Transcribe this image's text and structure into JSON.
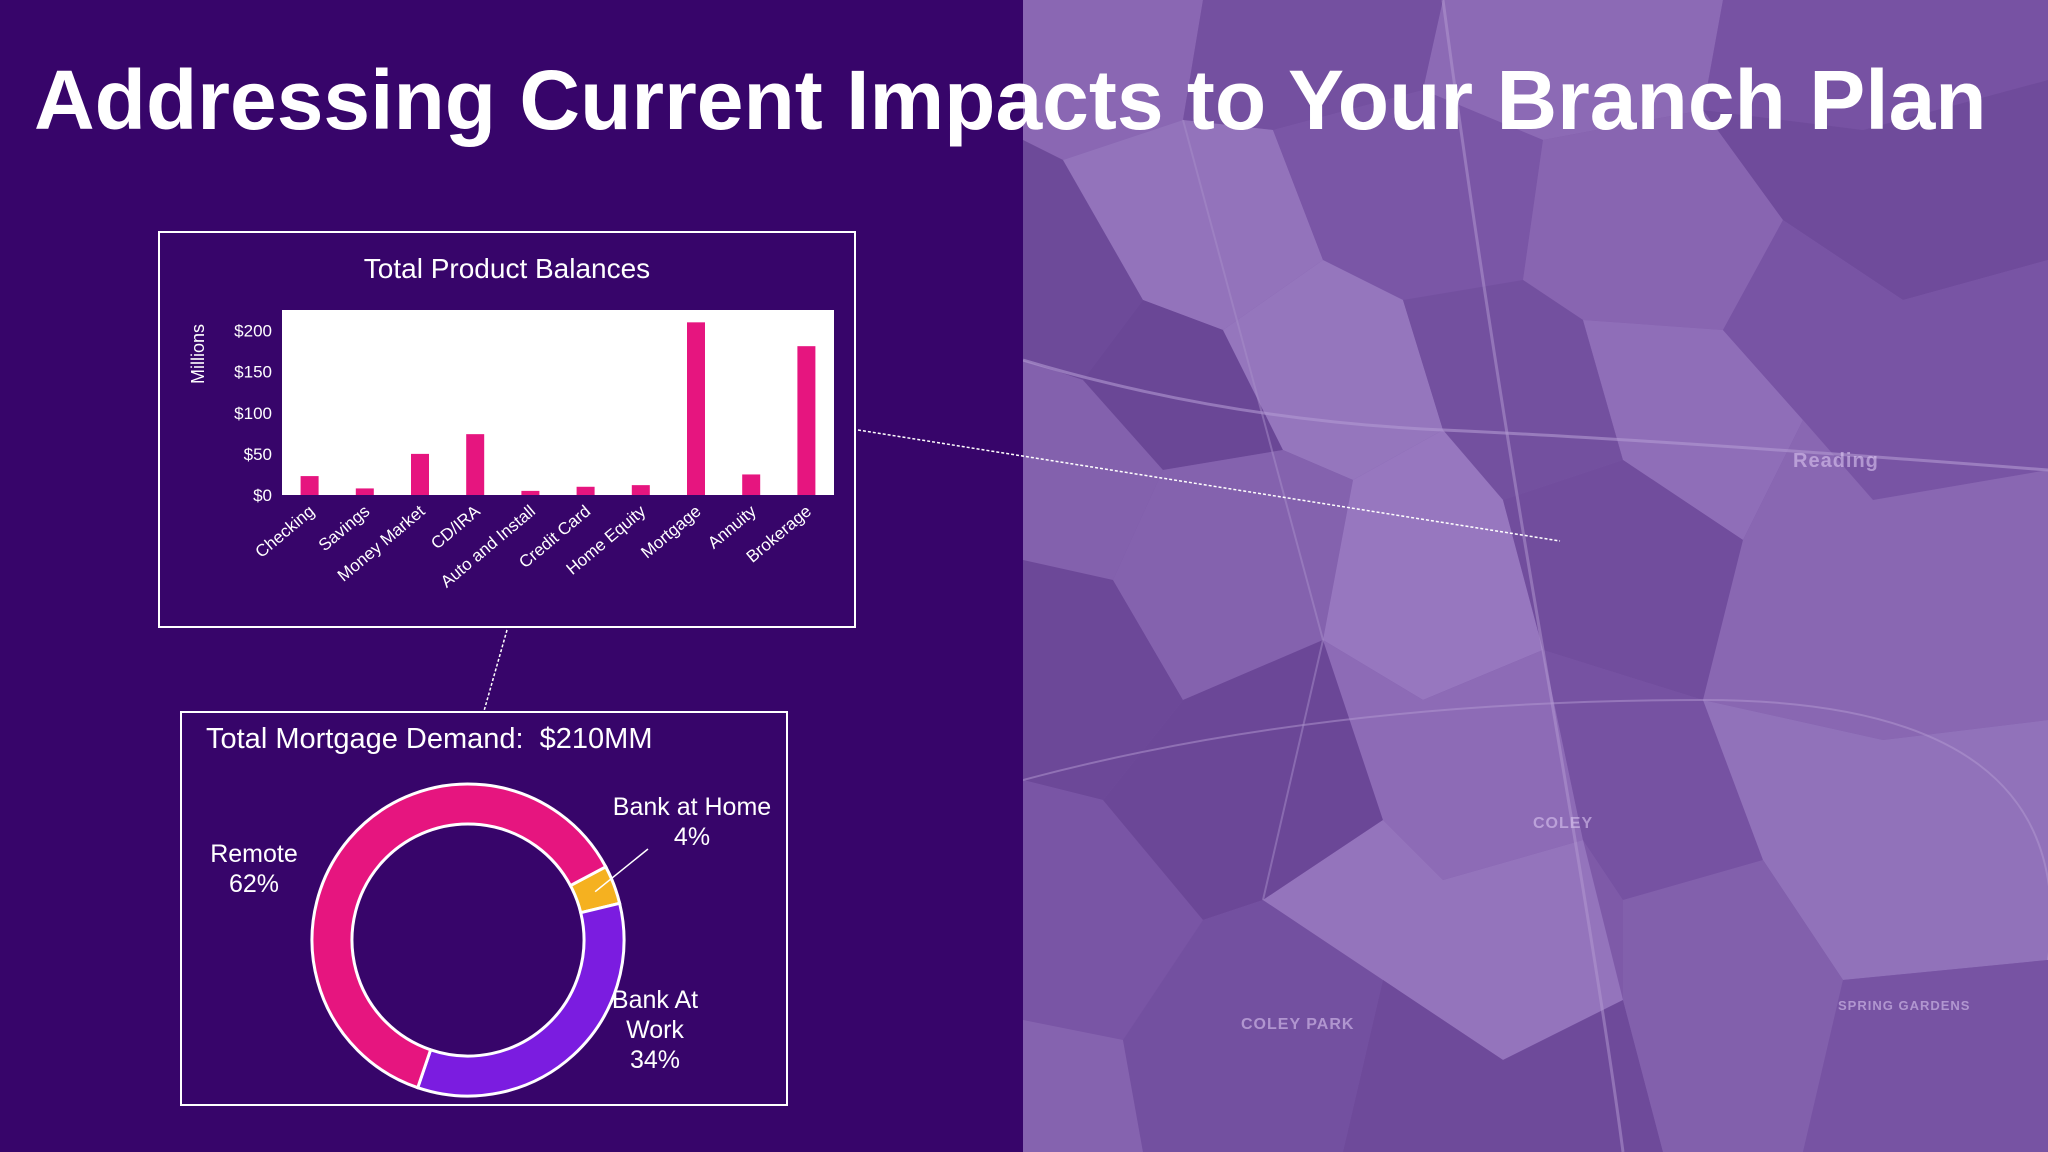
{
  "slide": {
    "title": "Addressing Current Impacts to Your Branch Plan"
  },
  "map": {
    "labels": [
      "Reading",
      "COLEY",
      "COLEY PARK",
      "SPRING GARDENS"
    ]
  },
  "colors": {
    "background": "#37056a",
    "bar": "#e6157f",
    "remote": "#e6157f",
    "bank_at_home": "#f5b120",
    "bank_at_work": "#7b1ce0"
  },
  "chart_data": [
    {
      "type": "bar",
      "title": "Total Product Balances",
      "ylabel": "Millions",
      "ylim": [
        0,
        225
      ],
      "yticks": [
        "$0",
        "$50",
        "$100",
        "$150",
        "$200"
      ],
      "ytick_values": [
        0,
        50,
        100,
        150,
        200
      ],
      "categories": [
        "Checking",
        "Savings",
        "Money Market",
        "CD/IRA",
        "Auto and Install",
        "Credit Card",
        "Home Equity",
        "Mortgage",
        "Annuity",
        "Brokerage"
      ],
      "values": [
        23,
        8,
        50,
        74,
        5,
        10,
        12,
        210,
        25,
        181
      ]
    },
    {
      "type": "pie",
      "title": "Total Mortgage Demand:  $210MM",
      "slices": [
        {
          "label": "Remote",
          "value": 62,
          "display": "62%"
        },
        {
          "label": "Bank at Home",
          "value": 4,
          "display": "4%"
        },
        {
          "label": "Bank At Work",
          "value": 34,
          "display": "34%"
        }
      ]
    }
  ]
}
